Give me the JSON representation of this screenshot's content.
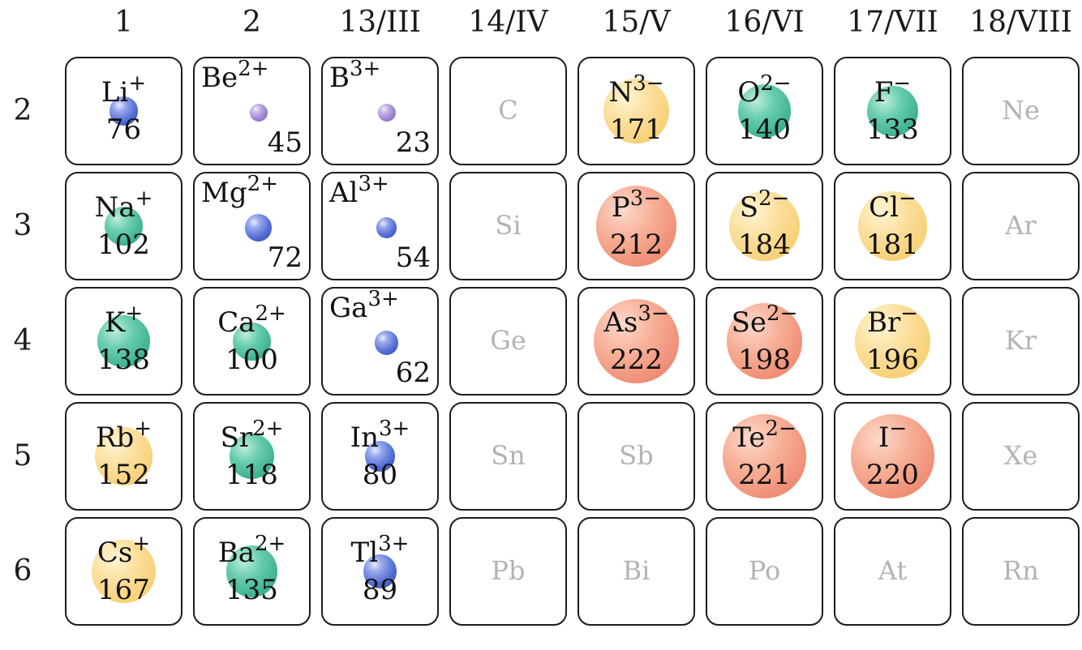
{
  "groups": [
    "1",
    "2",
    "13/III",
    "14/IV",
    "15/V",
    "16/VI",
    "17/VII",
    "18/VIII"
  ],
  "periods": [
    "2",
    "3",
    "4",
    "5",
    "6"
  ],
  "empty_cells": [
    {
      "col": 3,
      "row": 0,
      "element": "C"
    },
    {
      "col": 7,
      "row": 0,
      "element": "Ne"
    },
    {
      "col": 3,
      "row": 1,
      "element": "Si"
    },
    {
      "col": 7,
      "row": 1,
      "element": "Ar"
    },
    {
      "col": 3,
      "row": 2,
      "element": "Ge"
    },
    {
      "col": 7,
      "row": 2,
      "element": "Kr"
    },
    {
      "col": 3,
      "row": 3,
      "element": "Sn"
    },
    {
      "col": 4,
      "row": 3,
      "element": "Sb"
    },
    {
      "col": 7,
      "row": 3,
      "element": "Xe"
    },
    {
      "col": 3,
      "row": 4,
      "element": "Pb"
    },
    {
      "col": 4,
      "row": 4,
      "element": "Bi"
    },
    {
      "col": 5,
      "row": 4,
      "element": "Po"
    },
    {
      "col": 6,
      "row": 4,
      "element": "At"
    },
    {
      "col": 7,
      "row": 4,
      "element": "Rn"
    }
  ],
  "ions": [
    {
      "col": 0,
      "row": 0,
      "element": "Li",
      "charge": "+",
      "radius": 76,
      "color": "blue"
    },
    {
      "col": 1,
      "row": 0,
      "element": "Be",
      "charge": "2+",
      "radius": 45,
      "color": "purple"
    },
    {
      "col": 2,
      "row": 0,
      "element": "B",
      "charge": "3+",
      "radius": 23,
      "color": "purple"
    },
    {
      "col": 4,
      "row": 0,
      "element": "N",
      "charge": "3−",
      "radius": 171,
      "color": "yellow"
    },
    {
      "col": 5,
      "row": 0,
      "element": "O",
      "charge": "2−",
      "radius": 140,
      "color": "teal"
    },
    {
      "col": 6,
      "row": 0,
      "element": "F",
      "charge": "−",
      "radius": 133,
      "color": "teal"
    },
    {
      "col": 0,
      "row": 1,
      "element": "Na",
      "charge": "+",
      "radius": 102,
      "color": "teal"
    },
    {
      "col": 1,
      "row": 1,
      "element": "Mg",
      "charge": "2+",
      "radius": 72,
      "color": "blue"
    },
    {
      "col": 2,
      "row": 1,
      "element": "Al",
      "charge": "3+",
      "radius": 54,
      "color": "blue"
    },
    {
      "col": 4,
      "row": 1,
      "element": "P",
      "charge": "3−",
      "radius": 212,
      "color": "red"
    },
    {
      "col": 5,
      "row": 1,
      "element": "S",
      "charge": "2−",
      "radius": 184,
      "color": "yellow"
    },
    {
      "col": 6,
      "row": 1,
      "element": "Cl",
      "charge": "−",
      "radius": 181,
      "color": "yellow"
    },
    {
      "col": 0,
      "row": 2,
      "element": "K",
      "charge": "+",
      "radius": 138,
      "color": "teal"
    },
    {
      "col": 1,
      "row": 2,
      "element": "Ca",
      "charge": "2+",
      "radius": 100,
      "color": "teal"
    },
    {
      "col": 2,
      "row": 2,
      "element": "Ga",
      "charge": "3+",
      "radius": 62,
      "color": "blue"
    },
    {
      "col": 4,
      "row": 2,
      "element": "As",
      "charge": "3−",
      "radius": 222,
      "color": "red"
    },
    {
      "col": 5,
      "row": 2,
      "element": "Se",
      "charge": "2−",
      "radius": 198,
      "color": "red"
    },
    {
      "col": 6,
      "row": 2,
      "element": "Br",
      "charge": "−",
      "radius": 196,
      "color": "yellow"
    },
    {
      "col": 0,
      "row": 3,
      "element": "Rb",
      "charge": "+",
      "radius": 152,
      "color": "yellow"
    },
    {
      "col": 1,
      "row": 3,
      "element": "Sr",
      "charge": "2+",
      "radius": 118,
      "color": "teal"
    },
    {
      "col": 2,
      "row": 3,
      "element": "In",
      "charge": "3+",
      "radius": 80,
      "color": "blue"
    },
    {
      "col": 5,
      "row": 3,
      "element": "Te",
      "charge": "2−",
      "radius": 221,
      "color": "red"
    },
    {
      "col": 6,
      "row": 3,
      "element": "I",
      "charge": "−",
      "radius": 220,
      "color": "red"
    },
    {
      "col": 0,
      "row": 4,
      "element": "Cs",
      "charge": "+",
      "radius": 167,
      "color": "yellow"
    },
    {
      "col": 1,
      "row": 4,
      "element": "Ba",
      "charge": "2+",
      "radius": 135,
      "color": "teal"
    },
    {
      "col": 2,
      "row": 4,
      "element": "Tl",
      "charge": "3+",
      "radius": 89,
      "color": "blue"
    }
  ]
}
